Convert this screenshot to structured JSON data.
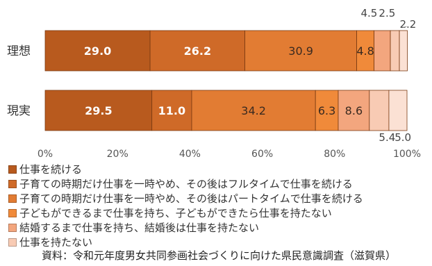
{
  "chart_data": {
    "type": "bar",
    "orientation": "horizontal",
    "stacked": true,
    "categories": [
      "理想",
      "現実"
    ],
    "series": [
      {
        "name": "仕事を続ける",
        "color": "#b85a1e",
        "values": [
          29.0,
          29.5
        ],
        "labels": [
          "29.0",
          "29.5"
        ]
      },
      {
        "name": "子育ての時期だけ仕事を一時やめ、その後はフルタイムで仕事を続ける",
        "color": "#cf6a28",
        "values": [
          26.2,
          11.0
        ],
        "labels": [
          "26.2",
          "11.0"
        ]
      },
      {
        "name": "子育ての時期だけ仕事を一時やめ、その後はパートタイムで仕事を続ける",
        "color": "#e27c33",
        "values": [
          30.9,
          34.2
        ],
        "labels": [
          "30.9",
          "34.2"
        ]
      },
      {
        "name": "子どもができるまで仕事を持ち、子どもができたら仕事を持たない",
        "color": "#f08a3a",
        "values": [
          4.8,
          6.3
        ],
        "labels": [
          "4.8",
          "6.3"
        ]
      },
      {
        "name": "結婚するまで仕事を持ち、結婚後は仕事を持たない",
        "color": "#f3a67e",
        "values": [
          4.5,
          8.6
        ],
        "labels": [
          "4.5",
          "8.6"
        ]
      },
      {
        "name": "仕事を持たない",
        "color": "#f8cbb4",
        "values": [
          2.5,
          5.4
        ],
        "labels": [
          "2.5",
          "5.4"
        ]
      },
      {
        "name": "",
        "color": "#fbe1d4",
        "values": [
          2.2,
          5.0
        ],
        "labels": [
          "2.2",
          "5.0"
        ]
      }
    ],
    "xaxis": {
      "min": 0,
      "max": 100,
      "ticks": [
        "0%",
        "20%",
        "40%",
        "60%",
        "80%",
        "100%"
      ]
    },
    "legend_position": "bottom-left",
    "grid": false
  },
  "source_text": "資料：令和元年度男女共同参画社会づくりに向けた県民意識調査（滋賀県）"
}
